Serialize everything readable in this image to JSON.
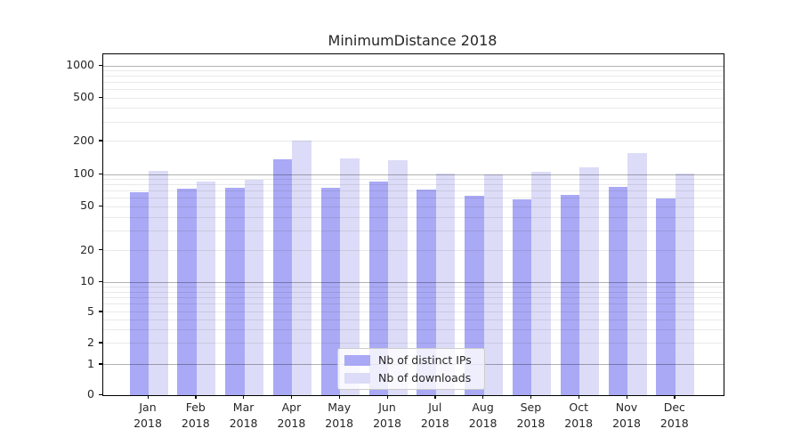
{
  "title": "MinimumDistance 2018",
  "chart_data": {
    "type": "bar",
    "title": "MinimumDistance 2018",
    "categories": [
      "Jan 2018",
      "Feb 2018",
      "Mar 2018",
      "Apr 2018",
      "May 2018",
      "Jun 2018",
      "Jul 2018",
      "Aug 2018",
      "Sep 2018",
      "Oct 2018",
      "Nov 2018",
      "Dec 2018"
    ],
    "series": [
      {
        "name": "Nb of distinct IPs",
        "color": "#a9a9f6",
        "values": [
          69,
          74,
          76,
          137,
          76,
          87,
          72,
          64,
          59,
          65,
          77,
          60
        ]
      },
      {
        "name": "Nb of downloads",
        "color": "#dcdcf8",
        "values": [
          108,
          87,
          90,
          204,
          139,
          134,
          102,
          100,
          106,
          117,
          157,
          103
        ]
      }
    ],
    "xlabel": "",
    "ylabel": "",
    "yscale": "symlog",
    "ylim": [
      0,
      1150
    ],
    "yticks": [
      0,
      1,
      2,
      5,
      10,
      20,
      50,
      100,
      200,
      500,
      1000
    ],
    "major_gridlines": [
      1,
      10,
      100,
      1000
    ],
    "minor_gridlines": [
      2,
      3,
      4,
      5,
      6,
      7,
      8,
      9,
      20,
      30,
      40,
      50,
      60,
      70,
      80,
      90,
      200,
      300,
      400,
      500,
      600,
      700,
      800,
      900
    ],
    "grid": true,
    "legend_position": "lower center"
  },
  "colors": {
    "series_ips": "#a9a9f6",
    "series_downloads": "#dcdcf8",
    "major_grid": "#b3b3b3",
    "minor_grid": "#e9e9e9",
    "spine": "#000000",
    "text": "#262626"
  }
}
